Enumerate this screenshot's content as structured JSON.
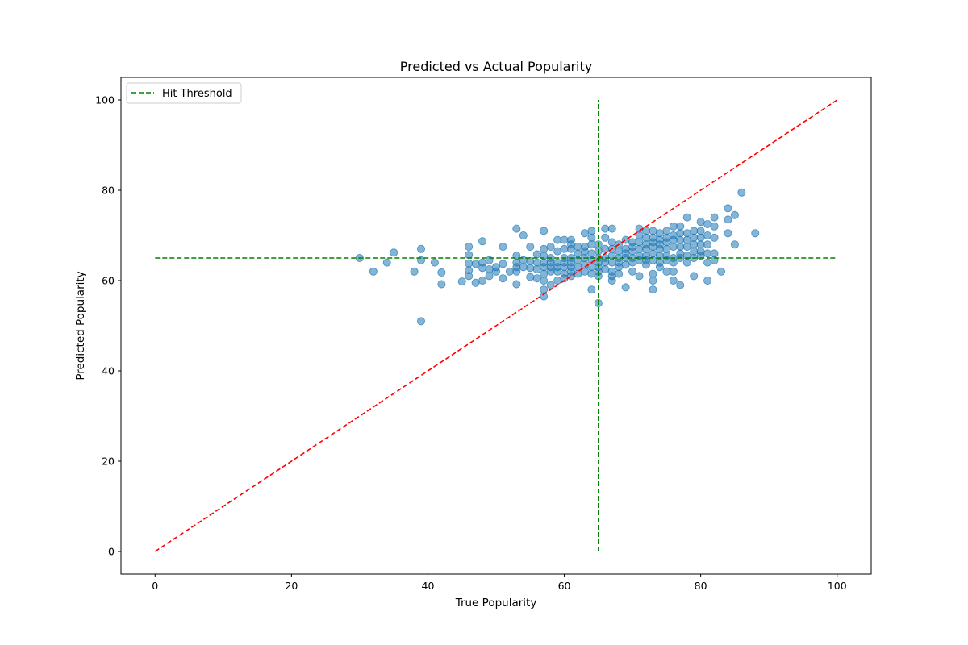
{
  "chart_data": {
    "type": "scatter",
    "title": "Predicted vs Actual Popularity",
    "xlabel": "True Popularity",
    "ylabel": "Predicted Popularity",
    "xlim": [
      -5,
      105
    ],
    "ylim": [
      -5,
      105
    ],
    "xticks": [
      0,
      20,
      40,
      60,
      80,
      100
    ],
    "yticks": [
      0,
      20,
      40,
      60,
      80,
      100
    ],
    "grid": false,
    "legend": {
      "placement": "top-left",
      "entries": [
        "Hit Threshold"
      ]
    },
    "colors": {
      "points": "#1f77b4",
      "identity_line": "#ff0000",
      "threshold": "#008000"
    },
    "threshold": {
      "value": 65,
      "x_span": [
        0,
        100
      ],
      "y_span": [
        0,
        100
      ]
    },
    "identity_line": {
      "from": [
        0,
        0
      ],
      "to": [
        100,
        100
      ]
    },
    "series": [
      {
        "points": [
          [
            30,
            65
          ],
          [
            32,
            62
          ],
          [
            34,
            64
          ],
          [
            35,
            66.2
          ],
          [
            38,
            62
          ],
          [
            39,
            67
          ],
          [
            39,
            64.5
          ],
          [
            39,
            51
          ],
          [
            41,
            64
          ],
          [
            42,
            61.8
          ],
          [
            42,
            59.2
          ],
          [
            45,
            59.8
          ],
          [
            46,
            67.5
          ],
          [
            46,
            65.7
          ],
          [
            46,
            63.8
          ],
          [
            46,
            62.3
          ],
          [
            46,
            61
          ],
          [
            47,
            63.7
          ],
          [
            47,
            59.5
          ],
          [
            48,
            68.7
          ],
          [
            48,
            64
          ],
          [
            48,
            62.8
          ],
          [
            48,
            60
          ],
          [
            49,
            64.5
          ],
          [
            49,
            62.5
          ],
          [
            49,
            61
          ],
          [
            50,
            63
          ],
          [
            50,
            62
          ],
          [
            51,
            67.5
          ],
          [
            51,
            63.7
          ],
          [
            51,
            60.5
          ],
          [
            52,
            62
          ],
          [
            53,
            71.5
          ],
          [
            53,
            65.5
          ],
          [
            53,
            64
          ],
          [
            53,
            63
          ],
          [
            53,
            62
          ],
          [
            53,
            59.2
          ],
          [
            54,
            70
          ],
          [
            54,
            64.5
          ],
          [
            54,
            63
          ],
          [
            55,
            67.5
          ],
          [
            55,
            64.3
          ],
          [
            55,
            62.8
          ],
          [
            55,
            60.8
          ],
          [
            56,
            65.8
          ],
          [
            56,
            64
          ],
          [
            56,
            62.5
          ],
          [
            56,
            60.5
          ],
          [
            57,
            71
          ],
          [
            57,
            67
          ],
          [
            57,
            65.5
          ],
          [
            57,
            64
          ],
          [
            57,
            63
          ],
          [
            57,
            61.5
          ],
          [
            57,
            60
          ],
          [
            57,
            58
          ],
          [
            57,
            56.5
          ],
          [
            58,
            67.5
          ],
          [
            58,
            65
          ],
          [
            58,
            64
          ],
          [
            58,
            63
          ],
          [
            58,
            62
          ],
          [
            58,
            59
          ],
          [
            59,
            69
          ],
          [
            59,
            66.5
          ],
          [
            59,
            64
          ],
          [
            59,
            63
          ],
          [
            59,
            62
          ],
          [
            59,
            60
          ],
          [
            60,
            69
          ],
          [
            60,
            67
          ],
          [
            60,
            65
          ],
          [
            60,
            64
          ],
          [
            60,
            63
          ],
          [
            60,
            61.5
          ],
          [
            60,
            60.5
          ],
          [
            61,
            69
          ],
          [
            61,
            68
          ],
          [
            61,
            67
          ],
          [
            61,
            65
          ],
          [
            61,
            64
          ],
          [
            61,
            63
          ],
          [
            61,
            62
          ],
          [
            61,
            61
          ],
          [
            62,
            67.5
          ],
          [
            62,
            66
          ],
          [
            62,
            64.5
          ],
          [
            62,
            63
          ],
          [
            62,
            61.5
          ],
          [
            63,
            70.5
          ],
          [
            63,
            67.5
          ],
          [
            63,
            66.5
          ],
          [
            63,
            65
          ],
          [
            63,
            63.5
          ],
          [
            63,
            62
          ],
          [
            64,
            71
          ],
          [
            64,
            69.5
          ],
          [
            64,
            68
          ],
          [
            64,
            66
          ],
          [
            64,
            64.5
          ],
          [
            64,
            63
          ],
          [
            64,
            61.5
          ],
          [
            64,
            58
          ],
          [
            65,
            68
          ],
          [
            65,
            66.5
          ],
          [
            65,
            65
          ],
          [
            65,
            64
          ],
          [
            65,
            63
          ],
          [
            65,
            62
          ],
          [
            65,
            61
          ],
          [
            65,
            55
          ],
          [
            66,
            71.5
          ],
          [
            66,
            69.5
          ],
          [
            66,
            67
          ],
          [
            66,
            65
          ],
          [
            66,
            64
          ],
          [
            66,
            62.5
          ],
          [
            67,
            71.5
          ],
          [
            67,
            68.5
          ],
          [
            67,
            67
          ],
          [
            67,
            65.5
          ],
          [
            67,
            64
          ],
          [
            67,
            62
          ],
          [
            67,
            61
          ],
          [
            67,
            60
          ],
          [
            68,
            68
          ],
          [
            68,
            66.5
          ],
          [
            68,
            65
          ],
          [
            68,
            64
          ],
          [
            68,
            63
          ],
          [
            68,
            61.5
          ],
          [
            69,
            69
          ],
          [
            69,
            67
          ],
          [
            69,
            66
          ],
          [
            69,
            65
          ],
          [
            69,
            63.5
          ],
          [
            69,
            58.5
          ],
          [
            70,
            68.5
          ],
          [
            70,
            67.5
          ],
          [
            70,
            66.5
          ],
          [
            70,
            65
          ],
          [
            70,
            64
          ],
          [
            70,
            62
          ],
          [
            71,
            71.5
          ],
          [
            71,
            70
          ],
          [
            71,
            68.5
          ],
          [
            71,
            67
          ],
          [
            71,
            65.5
          ],
          [
            71,
            64.5
          ],
          [
            71,
            61
          ],
          [
            72,
            71
          ],
          [
            72,
            69.5
          ],
          [
            72,
            68
          ],
          [
            72,
            67
          ],
          [
            72,
            65.5
          ],
          [
            72,
            64.5
          ],
          [
            72,
            63.5
          ],
          [
            73,
            71
          ],
          [
            73,
            69.5
          ],
          [
            73,
            68.5
          ],
          [
            73,
            67.5
          ],
          [
            73,
            66
          ],
          [
            73,
            64.5
          ],
          [
            73,
            61.5
          ],
          [
            73,
            60
          ],
          [
            73,
            58
          ],
          [
            74,
            70.5
          ],
          [
            74,
            69
          ],
          [
            74,
            68
          ],
          [
            74,
            67
          ],
          [
            74,
            65.5
          ],
          [
            74,
            64
          ],
          [
            74,
            63
          ],
          [
            75,
            71
          ],
          [
            75,
            69.5
          ],
          [
            75,
            68.5
          ],
          [
            75,
            67
          ],
          [
            75,
            65.5
          ],
          [
            75,
            64.5
          ],
          [
            75,
            62
          ],
          [
            76,
            72
          ],
          [
            76,
            70
          ],
          [
            76,
            69
          ],
          [
            76,
            67.5
          ],
          [
            76,
            65
          ],
          [
            76,
            64
          ],
          [
            76,
            62
          ],
          [
            76,
            60
          ],
          [
            77,
            72
          ],
          [
            77,
            70.5
          ],
          [
            77,
            69
          ],
          [
            77,
            67.5
          ],
          [
            77,
            66
          ],
          [
            77,
            65
          ],
          [
            77,
            59
          ],
          [
            78,
            74
          ],
          [
            78,
            70.5
          ],
          [
            78,
            69
          ],
          [
            78,
            67.5
          ],
          [
            78,
            65.5
          ],
          [
            78,
            64
          ],
          [
            79,
            71
          ],
          [
            79,
            69.5
          ],
          [
            79,
            68
          ],
          [
            79,
            66.5
          ],
          [
            79,
            65
          ],
          [
            79,
            61
          ],
          [
            80,
            73
          ],
          [
            80,
            71
          ],
          [
            80,
            69.5
          ],
          [
            80,
            68
          ],
          [
            80,
            66.5
          ],
          [
            80,
            65.5
          ],
          [
            81,
            72.5
          ],
          [
            81,
            70
          ],
          [
            81,
            68
          ],
          [
            81,
            66
          ],
          [
            81,
            64
          ],
          [
            81,
            60
          ],
          [
            82,
            74
          ],
          [
            82,
            72
          ],
          [
            82,
            69.5
          ],
          [
            82,
            66
          ],
          [
            82,
            64.5
          ],
          [
            83,
            62
          ],
          [
            84,
            76
          ],
          [
            84,
            73.5
          ],
          [
            84,
            70.5
          ],
          [
            85,
            74.5
          ],
          [
            85,
            68
          ],
          [
            86,
            79.5
          ],
          [
            88,
            70.5
          ]
        ]
      }
    ]
  }
}
